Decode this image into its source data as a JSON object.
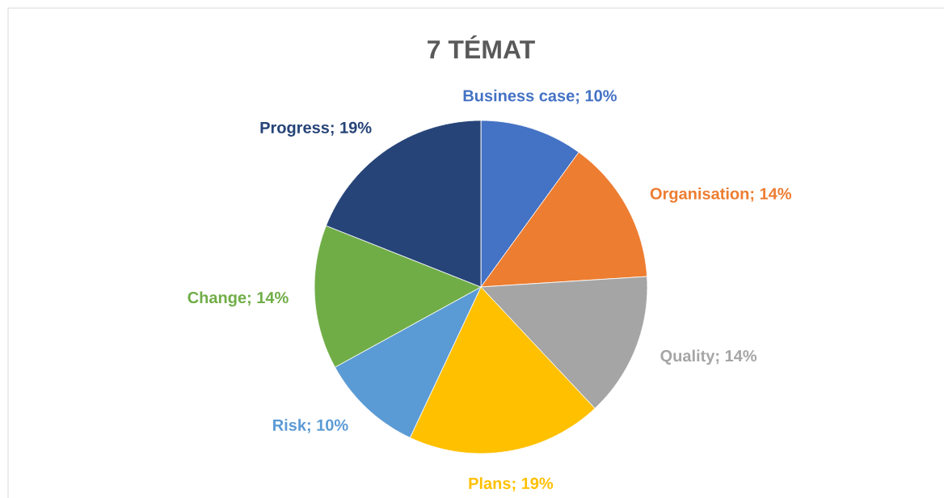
{
  "chart_data": {
    "type": "pie",
    "title": "7 TÉMAT",
    "categories": [
      "Business case",
      "Organisation",
      "Quality",
      "Plans",
      "Risk",
      "Change",
      "Progress"
    ],
    "values": [
      10,
      14,
      14,
      19,
      10,
      14,
      19
    ],
    "value_labels": [
      "; 10%",
      "; 14%",
      "; 14%",
      "; 19%",
      "; 10%",
      "; 14%",
      "; 19%"
    ],
    "colors": [
      "#4472c4",
      "#ed7d31",
      "#a5a5a5",
      "#ffc000",
      "#5b9bd5",
      "#70ad47",
      "#264478"
    ]
  }
}
